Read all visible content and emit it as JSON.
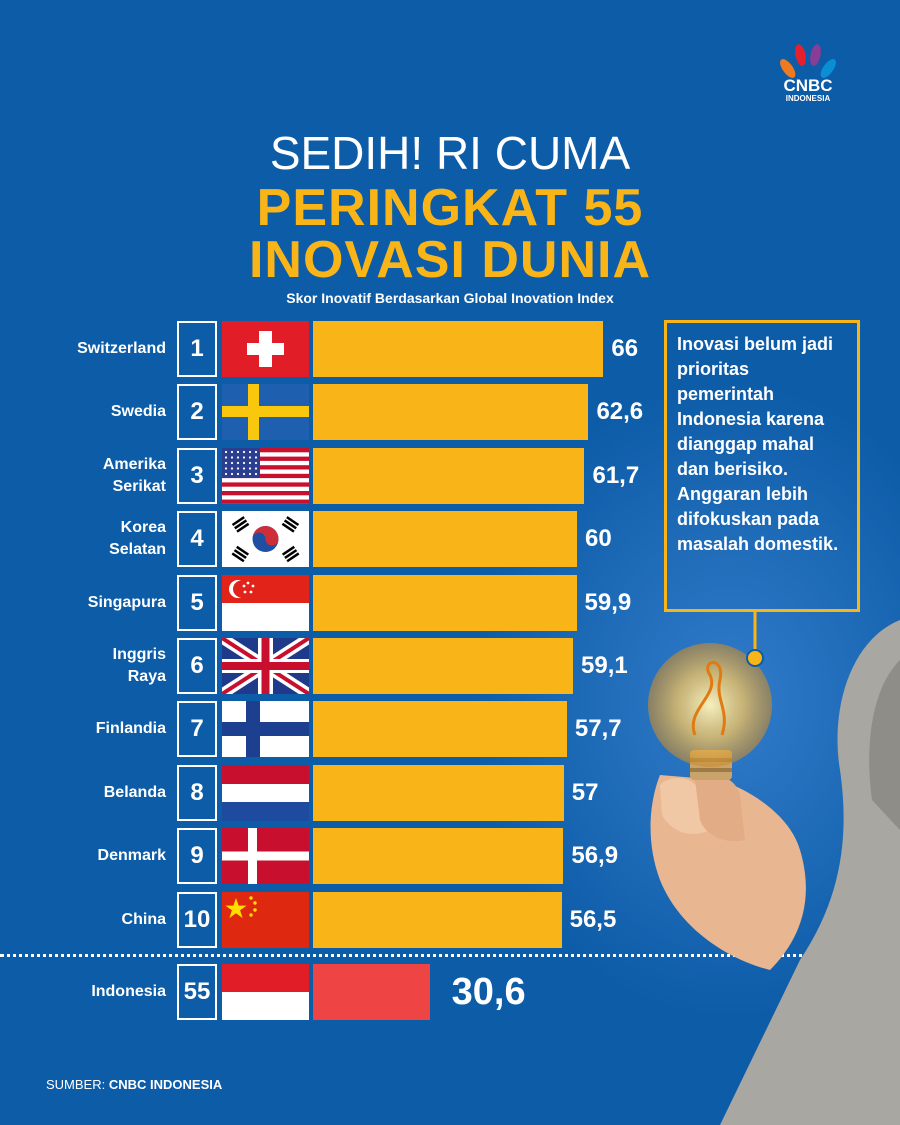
{
  "header": {
    "brand": "CNBC",
    "brand_sub": "INDONESIA",
    "title_line1": "SEDIH! RI CUMA",
    "title_line2": "PERINGKAT 55",
    "title_line3": "INOVASI DUNIA"
  },
  "chart_data": {
    "type": "bar",
    "title": "",
    "subtitle": "Skor Inovatif Berdasarkan Global Inovation Index",
    "rows": [
      {
        "rank": "1",
        "country_lines": [
          "Switzerland"
        ],
        "value": 66,
        "label": "66",
        "flag": "switzerland-flag"
      },
      {
        "rank": "2",
        "country_lines": [
          "Swedia"
        ],
        "value": 62.6,
        "label": "62,6",
        "flag": "sweden-flag"
      },
      {
        "rank": "3",
        "country_lines": [
          "Amerika",
          "Serikat"
        ],
        "value": 61.7,
        "label": "61,7",
        "flag": "usa-flag"
      },
      {
        "rank": "4",
        "country_lines": [
          "Korea",
          "Selatan"
        ],
        "value": 60,
        "label": "60",
        "flag": "south-korea-flag"
      },
      {
        "rank": "5",
        "country_lines": [
          "Singapura"
        ],
        "value": 59.9,
        "label": "59,9",
        "flag": "singapore-flag"
      },
      {
        "rank": "6",
        "country_lines": [
          "Inggris",
          "Raya"
        ],
        "value": 59.1,
        "label": "59,1",
        "flag": "uk-flag"
      },
      {
        "rank": "7",
        "country_lines": [
          "Finlandia"
        ],
        "value": 57.7,
        "label": "57,7",
        "flag": "finland-flag"
      },
      {
        "rank": "8",
        "country_lines": [
          "Belanda"
        ],
        "value": 57,
        "label": "57",
        "flag": "netherlands-flag"
      },
      {
        "rank": "9",
        "country_lines": [
          "Denmark"
        ],
        "value": 56.9,
        "label": "56,9",
        "flag": "denmark-flag"
      },
      {
        "rank": "10",
        "country_lines": [
          "China"
        ],
        "value": 56.5,
        "label": "56,5",
        "flag": "china-flag"
      }
    ],
    "highlight": {
      "rank": "55",
      "country_lines": [
        "Indonesia"
      ],
      "value": 30.6,
      "label": "30,6",
      "flag": "indonesia-flag"
    },
    "bar_color": "#f9b518",
    "highlight_color": "#ef4444"
  },
  "callout": {
    "text": "Inovasi belum jadi prioritas pemerintah Indonesia karena dianggap mahal dan berisiko. Anggaran lebih difokuskan pada masalah domestik."
  },
  "footer": {
    "source_prefix": "SUMBER: ",
    "source_name": "CNBC INDONESIA"
  },
  "colors": {
    "background": "#0d5ca8",
    "accent": "#f9b518",
    "text": "#ffffff"
  }
}
